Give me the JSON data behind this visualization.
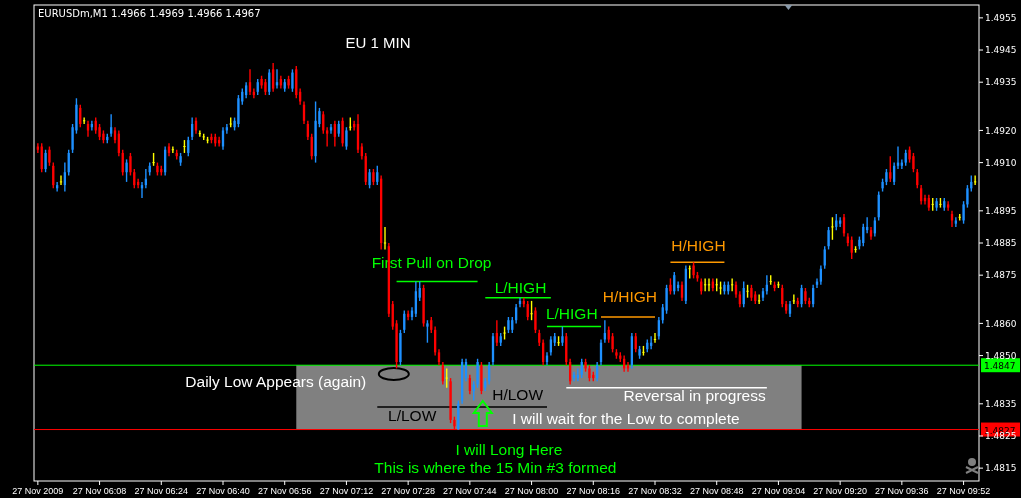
{
  "chart_data": {
    "type": "candlestick",
    "title": "EU 1 MIN",
    "subtitle": "EURUSDm,M1 1.4966 1.4969 1.4966 1.4967",
    "x": [
      "2009-11-27T05:52",
      "2009-11-27T05:53",
      "2009-11-27T05:54",
      "2009-11-27T05:55",
      "2009-11-27T05:56",
      "2009-11-27T05:57",
      "2009-11-27T05:58",
      "2009-11-27T05:59",
      "2009-11-27T06:00",
      "2009-11-27T06:01",
      "2009-11-27T06:02",
      "2009-11-27T06:03",
      "2009-11-27T06:04",
      "2009-11-27T06:05",
      "2009-11-27T06:06",
      "2009-11-27T06:07",
      "2009-11-27T06:08",
      "2009-11-27T06:09",
      "2009-11-27T06:10",
      "2009-11-27T06:11",
      "2009-11-27T06:12",
      "2009-11-27T06:13",
      "2009-11-27T06:14",
      "2009-11-27T06:15",
      "2009-11-27T06:16",
      "2009-11-27T06:17",
      "2009-11-27T06:18",
      "2009-11-27T06:19",
      "2009-11-27T06:20",
      "2009-11-27T06:21",
      "2009-11-27T06:22",
      "2009-11-27T06:23",
      "2009-11-27T06:24",
      "2009-11-27T06:25",
      "2009-11-27T06:26",
      "2009-11-27T06:27",
      "2009-11-27T06:28",
      "2009-11-27T06:29",
      "2009-11-27T06:30",
      "2009-11-27T06:31",
      "2009-11-27T06:32",
      "2009-11-27T06:33",
      "2009-11-27T06:34",
      "2009-11-27T06:35",
      "2009-11-27T06:36",
      "2009-11-27T06:37",
      "2009-11-27T06:38",
      "2009-11-27T06:39",
      "2009-11-27T06:40",
      "2009-11-27T06:41",
      "2009-11-27T06:42",
      "2009-11-27T06:43",
      "2009-11-27T06:44",
      "2009-11-27T06:45",
      "2009-11-27T06:46",
      "2009-11-27T06:47",
      "2009-11-27T06:48",
      "2009-11-27T06:49",
      "2009-11-27T06:50",
      "2009-11-27T06:51",
      "2009-11-27T06:52",
      "2009-11-27T06:53",
      "2009-11-27T06:54",
      "2009-11-27T06:55",
      "2009-11-27T06:56",
      "2009-11-27T06:57",
      "2009-11-27T06:58",
      "2009-11-27T06:59",
      "2009-11-27T07:00",
      "2009-11-27T07:01",
      "2009-11-27T07:02",
      "2009-11-27T07:03",
      "2009-11-27T07:04",
      "2009-11-27T07:05",
      "2009-11-27T07:06",
      "2009-11-27T07:07",
      "2009-11-27T07:08",
      "2009-11-27T07:09",
      "2009-11-27T07:10",
      "2009-11-27T07:11",
      "2009-11-27T07:12",
      "2009-11-27T07:13",
      "2009-11-27T07:14",
      "2009-11-27T07:15",
      "2009-11-27T07:16",
      "2009-11-27T07:17",
      "2009-11-27T07:18",
      "2009-11-27T07:19",
      "2009-11-27T07:20",
      "2009-11-27T07:21",
      "2009-11-27T07:22",
      "2009-11-27T07:23",
      "2009-11-27T07:24",
      "2009-11-27T07:25",
      "2009-11-27T07:26",
      "2009-11-27T07:27",
      "2009-11-27T07:28",
      "2009-11-27T07:29",
      "2009-11-27T07:30",
      "2009-11-27T07:31",
      "2009-11-27T07:32",
      "2009-11-27T07:33",
      "2009-11-27T07:34",
      "2009-11-27T07:35",
      "2009-11-27T07:36",
      "2009-11-27T07:37",
      "2009-11-27T07:38",
      "2009-11-27T07:39",
      "2009-11-27T07:40",
      "2009-11-27T07:41",
      "2009-11-27T07:42",
      "2009-11-27T07:43",
      "2009-11-27T07:44",
      "2009-11-27T07:45",
      "2009-11-27T07:46",
      "2009-11-27T07:47",
      "2009-11-27T07:48",
      "2009-11-27T07:49",
      "2009-11-27T07:50",
      "2009-11-27T07:51",
      "2009-11-27T07:52",
      "2009-11-27T07:53",
      "2009-11-27T07:54",
      "2009-11-27T07:55",
      "2009-11-27T07:56",
      "2009-11-27T07:57",
      "2009-11-27T07:58",
      "2009-11-27T07:59",
      "2009-11-27T08:00",
      "2009-11-27T08:01",
      "2009-11-27T08:02",
      "2009-11-27T08:03",
      "2009-11-27T08:04",
      "2009-11-27T08:05",
      "2009-11-27T08:06",
      "2009-11-27T08:07",
      "2009-11-27T08:08",
      "2009-11-27T08:09",
      "2009-11-27T08:10",
      "2009-11-27T08:11",
      "2009-11-27T08:12",
      "2009-11-27T08:13",
      "2009-11-27T08:14",
      "2009-11-27T08:15",
      "2009-11-27T08:16",
      "2009-11-27T08:17",
      "2009-11-27T08:18",
      "2009-11-27T08:19",
      "2009-11-27T08:20",
      "2009-11-27T08:21",
      "2009-11-27T08:22",
      "2009-11-27T08:23",
      "2009-11-27T08:24",
      "2009-11-27T08:25",
      "2009-11-27T08:26",
      "2009-11-27T08:27",
      "2009-11-27T08:28",
      "2009-11-27T08:29",
      "2009-11-27T08:30",
      "2009-11-27T08:31",
      "2009-11-27T08:32",
      "2009-11-27T08:33",
      "2009-11-27T08:34",
      "2009-11-27T08:35",
      "2009-11-27T08:36",
      "2009-11-27T08:37",
      "2009-11-27T08:38",
      "2009-11-27T08:39",
      "2009-11-27T08:40",
      "2009-11-27T08:41",
      "2009-11-27T08:42",
      "2009-11-27T08:43",
      "2009-11-27T08:44",
      "2009-11-27T08:45",
      "2009-11-27T08:46",
      "2009-11-27T08:47",
      "2009-11-27T08:48",
      "2009-11-27T08:49",
      "2009-11-27T08:50",
      "2009-11-27T08:51",
      "2009-11-27T08:52",
      "2009-11-27T08:53",
      "2009-11-27T08:54",
      "2009-11-27T08:55",
      "2009-11-27T08:56",
      "2009-11-27T08:57",
      "2009-11-27T08:58",
      "2009-11-27T08:59",
      "2009-11-27T09:00",
      "2009-11-27T09:01",
      "2009-11-27T09:02",
      "2009-11-27T09:03",
      "2009-11-27T09:04",
      "2009-11-27T09:05",
      "2009-11-27T09:06",
      "2009-11-27T09:07",
      "2009-11-27T09:08",
      "2009-11-27T09:09",
      "2009-11-27T09:10",
      "2009-11-27T09:11",
      "2009-11-27T09:12",
      "2009-11-27T09:13",
      "2009-11-27T09:14",
      "2009-11-27T09:15",
      "2009-11-27T09:16",
      "2009-11-27T09:17",
      "2009-11-27T09:18",
      "2009-11-27T09:19",
      "2009-11-27T09:20",
      "2009-11-27T09:21",
      "2009-11-27T09:22",
      "2009-11-27T09:23",
      "2009-11-27T09:24",
      "2009-11-27T09:25",
      "2009-11-27T09:26",
      "2009-11-27T09:27",
      "2009-11-27T09:28",
      "2009-11-27T09:29",
      "2009-11-27T09:30",
      "2009-11-27T09:31",
      "2009-11-27T09:32",
      "2009-11-27T09:33",
      "2009-11-27T09:34",
      "2009-11-27T09:35",
      "2009-11-27T09:36",
      "2009-11-27T09:37",
      "2009-11-27T09:38",
      "2009-11-27T09:39",
      "2009-11-27T09:40",
      "2009-11-27T09:41",
      "2009-11-27T09:42",
      "2009-11-27T09:43",
      "2009-11-27T09:44",
      "2009-11-27T09:45",
      "2009-11-27T09:46",
      "2009-11-27T09:47",
      "2009-11-27T09:48",
      "2009-11-27T09:49",
      "2009-11-27T09:50",
      "2009-11-27T09:51",
      "2009-11-27T09:52",
      "2009-11-27T09:53",
      "2009-11-27T09:54",
      "2009-11-27T09:55"
    ],
    "ohlc": [
      [
        1.4915,
        1.4916,
        1.4913,
        1.4914
      ],
      [
        1.4915,
        1.4916,
        1.4907,
        1.4908
      ],
      [
        1.4908,
        1.4914,
        1.4907,
        1.4913
      ],
      [
        1.4914,
        1.4915,
        1.4909,
        1.491
      ],
      [
        1.4909,
        1.491,
        1.4902,
        1.4903
      ],
      [
        1.4902,
        1.4904,
        1.4901,
        1.4903
      ],
      [
        1.4904,
        1.4906,
        1.4903,
        1.4904
      ],
      [
        1.4903,
        1.491,
        1.4901,
        1.4907
      ],
      [
        1.4907,
        1.4914,
        1.4906,
        1.4913
      ],
      [
        1.4914,
        1.4922,
        1.4913,
        1.4921
      ],
      [
        1.492,
        1.493,
        1.4919,
        1.4928
      ],
      [
        1.4927,
        1.4928,
        1.4921,
        1.4922
      ],
      [
        1.4923,
        1.4924,
        1.4922,
        1.4923
      ],
      [
        1.4922,
        1.4923,
        1.4918,
        1.492
      ],
      [
        1.4921,
        1.4923,
        1.492,
        1.4922
      ],
      [
        1.4923,
        1.4924,
        1.4919,
        1.492
      ],
      [
        1.4921,
        1.4922,
        1.4917,
        1.4918
      ],
      [
        1.4919,
        1.492,
        1.4916,
        1.4917
      ],
      [
        1.4917,
        1.4919,
        1.4916,
        1.4918
      ],
      [
        1.4919,
        1.4925,
        1.4918,
        1.4921
      ],
      [
        1.492,
        1.4921,
        1.4916,
        1.4917
      ],
      [
        1.4919,
        1.492,
        1.4912,
        1.4913
      ],
      [
        1.4913,
        1.4914,
        1.4906,
        1.4907
      ],
      [
        1.4907,
        1.4911,
        1.4904,
        1.491
      ],
      [
        1.4912,
        1.4913,
        1.4906,
        1.4907
      ],
      [
        1.4907,
        1.4908,
        1.4902,
        1.4903
      ],
      [
        1.4904,
        1.4905,
        1.4902,
        1.4903
      ],
      [
        1.4902,
        1.4904,
        1.4899,
        1.4903
      ],
      [
        1.4903,
        1.4908,
        1.4902,
        1.4905
      ],
      [
        1.4907,
        1.491,
        1.4906,
        1.4909
      ],
      [
        1.491,
        1.4913,
        1.4909,
        1.491
      ],
      [
        1.4909,
        1.491,
        1.4906,
        1.4907
      ],
      [
        1.4908,
        1.4909,
        1.4906,
        1.4907
      ],
      [
        1.4907,
        1.4915,
        1.4906,
        1.4914
      ],
      [
        1.4915,
        1.4916,
        1.4912,
        1.4913
      ],
      [
        1.4914,
        1.4915,
        1.4913,
        1.4914
      ],
      [
        1.4913,
        1.4914,
        1.4911,
        1.4912
      ],
      [
        1.491,
        1.4913,
        1.4909,
        1.4912
      ],
      [
        1.4915,
        1.4917,
        1.4913,
        1.4915
      ],
      [
        1.4913,
        1.4918,
        1.4912,
        1.4917
      ],
      [
        1.4918,
        1.4924,
        1.4917,
        1.4922
      ],
      [
        1.4923,
        1.4924,
        1.4919,
        1.492
      ],
      [
        1.4919,
        1.492,
        1.4918,
        1.4919
      ],
      [
        1.4918,
        1.4919,
        1.4917,
        1.4918
      ],
      [
        1.4917,
        1.4918,
        1.4916,
        1.4917
      ],
      [
        1.4918,
        1.4919,
        1.4916,
        1.4917
      ],
      [
        1.4918,
        1.4919,
        1.4915,
        1.4916
      ],
      [
        1.4917,
        1.4918,
        1.4915,
        1.4916
      ],
      [
        1.4915,
        1.4921,
        1.4914,
        1.492
      ],
      [
        1.492,
        1.4922,
        1.4919,
        1.4921
      ],
      [
        1.4922,
        1.4924,
        1.4921,
        1.4922
      ],
      [
        1.4921,
        1.4924,
        1.492,
        1.4923
      ],
      [
        1.4922,
        1.4931,
        1.4921,
        1.493
      ],
      [
        1.4929,
        1.4933,
        1.4928,
        1.4932
      ],
      [
        1.4931,
        1.4935,
        1.493,
        1.4934
      ],
      [
        1.4935,
        1.4939,
        1.4931,
        1.4932
      ],
      [
        1.4932,
        1.4933,
        1.493,
        1.4931
      ],
      [
        1.4932,
        1.4936,
        1.4931,
        1.4935
      ],
      [
        1.4936,
        1.4937,
        1.4933,
        1.4934
      ],
      [
        1.4935,
        1.4936,
        1.4931,
        1.4932
      ],
      [
        1.4932,
        1.4939,
        1.4931,
        1.4938
      ],
      [
        1.4939,
        1.4941,
        1.4932,
        1.4933
      ],
      [
        1.4934,
        1.4939,
        1.4933,
        1.4935
      ],
      [
        1.4936,
        1.4937,
        1.4933,
        1.4934
      ],
      [
        1.4933,
        1.4936,
        1.4932,
        1.4935
      ],
      [
        1.4936,
        1.4937,
        1.4933,
        1.4934
      ],
      [
        1.4933,
        1.4939,
        1.4932,
        1.4938
      ],
      [
        1.4939,
        1.494,
        1.493,
        1.4931
      ],
      [
        1.4932,
        1.4933,
        1.4928,
        1.4929
      ],
      [
        1.4928,
        1.4929,
        1.4922,
        1.4923
      ],
      [
        1.4922,
        1.4923,
        1.4917,
        1.4918
      ],
      [
        1.4918,
        1.4919,
        1.4911,
        1.4912
      ],
      [
        1.4912,
        1.4929,
        1.491,
        1.4923
      ],
      [
        1.4922,
        1.4927,
        1.4921,
        1.4926
      ],
      [
        1.4925,
        1.4926,
        1.4919,
        1.492
      ],
      [
        1.492,
        1.4921,
        1.4915,
        1.4919
      ],
      [
        1.492,
        1.4922,
        1.4919,
        1.4921
      ],
      [
        1.4922,
        1.4923,
        1.4915,
        1.4918
      ],
      [
        1.4919,
        1.4923,
        1.4918,
        1.4922
      ],
      [
        1.4923,
        1.4924,
        1.4915,
        1.4916
      ],
      [
        1.4915,
        1.4921,
        1.4914,
        1.492
      ],
      [
        1.4921,
        1.4924,
        1.492,
        1.4921
      ],
      [
        1.4922,
        1.4923,
        1.492,
        1.4921
      ],
      [
        1.4922,
        1.4925,
        1.4913,
        1.4914
      ],
      [
        1.4915,
        1.4916,
        1.4911,
        1.4912
      ],
      [
        1.4912,
        1.4913,
        1.4903,
        1.4904
      ],
      [
        1.4903,
        1.4908,
        1.4902,
        1.4907
      ],
      [
        1.4907,
        1.4908,
        1.4903,
        1.4904
      ],
      [
        1.4904,
        1.4909,
        1.4903,
        1.4907
      ],
      [
        1.4905,
        1.4906,
        1.4883,
        1.4885
      ],
      [
        1.4885,
        1.489,
        1.4883,
        1.4885
      ],
      [
        1.4884,
        1.4885,
        1.4862,
        1.4863
      ],
      [
        1.4866,
        1.4867,
        1.4858,
        1.4859
      ],
      [
        1.486,
        1.4861,
        1.4846,
        1.4848
      ],
      [
        1.4848,
        1.4858,
        1.4847,
        1.4857
      ],
      [
        1.4858,
        1.4864,
        1.4857,
        1.4863
      ],
      [
        1.4863,
        1.4864,
        1.4861,
        1.4862
      ],
      [
        1.4862,
        1.4865,
        1.4861,
        1.4864
      ],
      [
        1.4863,
        1.4873,
        1.4862,
        1.487
      ],
      [
        1.4868,
        1.4873,
        1.4867,
        1.4871
      ],
      [
        1.4871,
        1.4872,
        1.4859,
        1.486
      ],
      [
        1.4859,
        1.4861,
        1.4854,
        1.486
      ],
      [
        1.4861,
        1.4862,
        1.4857,
        1.4858
      ],
      [
        1.4858,
        1.4859,
        1.485,
        1.4851
      ],
      [
        1.4851,
        1.4852,
        1.4847,
        1.4848
      ],
      [
        1.4847,
        1.4848,
        1.4841,
        1.4842
      ],
      [
        1.4843,
        1.4846,
        1.484,
        1.4843
      ],
      [
        1.4842,
        1.4843,
        1.4829,
        1.483
      ],
      [
        1.483,
        1.4831,
        1.4827,
        1.4828
      ],
      [
        1.4827,
        1.4836,
        1.4827,
        1.4835
      ],
      [
        1.4836,
        1.4849,
        1.4835,
        1.4848
      ],
      [
        1.4843,
        1.4849,
        1.4842,
        1.4848
      ],
      [
        1.4843,
        1.4844,
        1.4838,
        1.4839
      ],
      [
        1.4839,
        1.4842,
        1.4836,
        1.4841
      ],
      [
        1.4841,
        1.4849,
        1.484,
        1.4848
      ],
      [
        1.4847,
        1.4848,
        1.4838,
        1.4839
      ],
      [
        1.484,
        1.4843,
        1.4839,
        1.4842
      ],
      [
        1.4842,
        1.4848,
        1.4841,
        1.4847
      ],
      [
        1.4848,
        1.4857,
        1.4847,
        1.4856
      ],
      [
        1.4857,
        1.4861,
        1.4853,
        1.4854
      ],
      [
        1.4854,
        1.4857,
        1.4853,
        1.4856
      ],
      [
        1.4857,
        1.4859,
        1.4855,
        1.4857
      ],
      [
        1.4858,
        1.4862,
        1.4857,
        1.4861
      ],
      [
        1.4858,
        1.4862,
        1.4857,
        1.4861
      ],
      [
        1.4861,
        1.4866,
        1.486,
        1.4865
      ],
      [
        1.4866,
        1.4868,
        1.4865,
        1.4867
      ],
      [
        1.4867,
        1.4868,
        1.4865,
        1.4866
      ],
      [
        1.4866,
        1.4867,
        1.4861,
        1.4862
      ],
      [
        1.4863,
        1.4867,
        1.4861,
        1.4863
      ],
      [
        1.4864,
        1.4865,
        1.4857,
        1.4858
      ],
      [
        1.4857,
        1.4858,
        1.4853,
        1.4854
      ],
      [
        1.4854,
        1.4855,
        1.4847,
        1.4848
      ],
      [
        1.4848,
        1.4851,
        1.4847,
        1.485
      ],
      [
        1.4851,
        1.4856,
        1.485,
        1.4855
      ],
      [
        1.4854,
        1.4857,
        1.4853,
        1.4856
      ],
      [
        1.4854,
        1.4856,
        1.4853,
        1.4854
      ],
      [
        1.4854,
        1.4859,
        1.4853,
        1.4856
      ],
      [
        1.4856,
        1.4857,
        1.4847,
        1.4848
      ],
      [
        1.4848,
        1.4849,
        1.4841,
        1.4842
      ],
      [
        1.4843,
        1.4845,
        1.4842,
        1.4844
      ],
      [
        1.4843,
        1.4846,
        1.4842,
        1.4844
      ],
      [
        1.4844,
        1.4849,
        1.4843,
        1.4848
      ],
      [
        1.4848,
        1.4849,
        1.4845,
        1.4846
      ],
      [
        1.4846,
        1.4847,
        1.4842,
        1.4843
      ],
      [
        1.4844,
        1.4845,
        1.4842,
        1.4843
      ],
      [
        1.4843,
        1.4848,
        1.4842,
        1.4847
      ],
      [
        1.4848,
        1.4855,
        1.4847,
        1.4854
      ],
      [
        1.4855,
        1.4861,
        1.4854,
        1.4857
      ],
      [
        1.4858,
        1.4859,
        1.4854,
        1.4855
      ],
      [
        1.4856,
        1.4857,
        1.4851,
        1.4852
      ],
      [
        1.4851,
        1.4852,
        1.4849,
        1.485
      ],
      [
        1.485,
        1.4851,
        1.4848,
        1.4849
      ],
      [
        1.4849,
        1.485,
        1.4845,
        1.4846
      ],
      [
        1.4847,
        1.4848,
        1.4845,
        1.4846
      ],
      [
        1.4847,
        1.4857,
        1.4846,
        1.4856
      ],
      [
        1.4856,
        1.4857,
        1.4851,
        1.4852
      ],
      [
        1.485,
        1.4853,
        1.4849,
        1.4852
      ],
      [
        1.4851,
        1.4853,
        1.485,
        1.4851
      ],
      [
        1.4852,
        1.4855,
        1.4851,
        1.4854
      ],
      [
        1.4853,
        1.4856,
        1.4852,
        1.4854
      ],
      [
        1.4855,
        1.4857,
        1.4854,
        1.4855
      ],
      [
        1.4856,
        1.4862,
        1.4855,
        1.4861
      ],
      [
        1.4861,
        1.4866,
        1.486,
        1.4865
      ],
      [
        1.4864,
        1.4872,
        1.4863,
        1.4871
      ],
      [
        1.4872,
        1.4874,
        1.4869,
        1.487
      ],
      [
        1.487,
        1.4876,
        1.4869,
        1.4875
      ],
      [
        1.4871,
        1.4873,
        1.487,
        1.4872
      ],
      [
        1.4872,
        1.4873,
        1.4867,
        1.4868
      ],
      [
        1.4867,
        1.4878,
        1.4866,
        1.4877
      ],
      [
        1.4877,
        1.4878,
        1.4874,
        1.4877
      ],
      [
        1.4878,
        1.4879,
        1.4874,
        1.4875
      ],
      [
        1.4875,
        1.4876,
        1.4873,
        1.4874
      ],
      [
        1.4873,
        1.4874,
        1.4869,
        1.487
      ],
      [
        1.4872,
        1.4874,
        1.487,
        1.4872
      ],
      [
        1.4872,
        1.4874,
        1.487,
        1.4872
      ],
      [
        1.4873,
        1.4874,
        1.487,
        1.4871
      ],
      [
        1.4872,
        1.4874,
        1.487,
        1.4872
      ],
      [
        1.4871,
        1.4873,
        1.4869,
        1.4871
      ],
      [
        1.487,
        1.4873,
        1.4869,
        1.4872
      ],
      [
        1.487,
        1.4873,
        1.4869,
        1.4872
      ],
      [
        1.4872,
        1.4874,
        1.487,
        1.4872
      ],
      [
        1.4872,
        1.4873,
        1.4868,
        1.4869
      ],
      [
        1.4869,
        1.487,
        1.4865,
        1.4866
      ],
      [
        1.4866,
        1.4873,
        1.4865,
        1.4871
      ],
      [
        1.487,
        1.4872,
        1.4868,
        1.487
      ],
      [
        1.4871,
        1.4872,
        1.4867,
        1.4868
      ],
      [
        1.4869,
        1.487,
        1.4866,
        1.4867
      ],
      [
        1.4867,
        1.4869,
        1.4866,
        1.4867
      ],
      [
        1.4868,
        1.4871,
        1.4867,
        1.487
      ],
      [
        1.487,
        1.4875,
        1.4869,
        1.4872
      ],
      [
        1.4873,
        1.4875,
        1.4872,
        1.4873
      ],
      [
        1.4872,
        1.4873,
        1.487,
        1.4871
      ],
      [
        1.4872,
        1.4873,
        1.4871,
        1.4872
      ],
      [
        1.4871,
        1.4872,
        1.4865,
        1.4866
      ],
      [
        1.4866,
        1.4867,
        1.4863,
        1.4864
      ],
      [
        1.4863,
        1.4867,
        1.4862,
        1.4866
      ],
      [
        1.4867,
        1.4869,
        1.4866,
        1.4867
      ],
      [
        1.4867,
        1.4868,
        1.4865,
        1.4866
      ],
      [
        1.4866,
        1.4872,
        1.4865,
        1.4871
      ],
      [
        1.487,
        1.4871,
        1.4866,
        1.4867
      ],
      [
        1.4867,
        1.4868,
        1.4865,
        1.4866
      ],
      [
        1.4866,
        1.4872,
        1.4865,
        1.4871
      ],
      [
        1.4872,
        1.4874,
        1.4871,
        1.4873
      ],
      [
        1.4873,
        1.4878,
        1.4872,
        1.4877
      ],
      [
        1.4878,
        1.4884,
        1.4877,
        1.4883
      ],
      [
        1.4884,
        1.489,
        1.4883,
        1.4889
      ],
      [
        1.489,
        1.4893,
        1.4886,
        1.489
      ],
      [
        1.489,
        1.4894,
        1.4889,
        1.4892
      ],
      [
        1.4891,
        1.4893,
        1.489,
        1.4892
      ],
      [
        1.4893,
        1.4894,
        1.4887,
        1.4888
      ],
      [
        1.4887,
        1.4888,
        1.4884,
        1.4885
      ],
      [
        1.4886,
        1.4887,
        1.488,
        1.4882
      ],
      [
        1.4883,
        1.4884,
        1.4882,
        1.4883
      ],
      [
        1.4884,
        1.4887,
        1.4883,
        1.4886
      ],
      [
        1.4885,
        1.4891,
        1.4884,
        1.489
      ],
      [
        1.4889,
        1.4893,
        1.4888,
        1.489
      ],
      [
        1.4889,
        1.489,
        1.4886,
        1.4887
      ],
      [
        1.4888,
        1.4893,
        1.4887,
        1.4892
      ],
      [
        1.4893,
        1.4901,
        1.4892,
        1.49
      ],
      [
        1.4902,
        1.4905,
        1.4901,
        1.4904
      ],
      [
        1.4904,
        1.4908,
        1.4903,
        1.4907
      ],
      [
        1.4907,
        1.4912,
        1.4904,
        1.4905
      ],
      [
        1.4904,
        1.491,
        1.4903,
        1.4909
      ],
      [
        1.4909,
        1.4915,
        1.4908,
        1.491
      ],
      [
        1.4909,
        1.4911,
        1.4908,
        1.491
      ],
      [
        1.491,
        1.4914,
        1.4909,
        1.4913
      ],
      [
        1.4914,
        1.4915,
        1.491,
        1.4911
      ],
      [
        1.4912,
        1.4913,
        1.4907,
        1.4908
      ],
      [
        1.4907,
        1.4908,
        1.4902,
        1.4903
      ],
      [
        1.4902,
        1.4903,
        1.4897,
        1.4898
      ],
      [
        1.4899,
        1.49,
        1.4897,
        1.4898
      ],
      [
        1.4899,
        1.49,
        1.4895,
        1.4896
      ],
      [
        1.4897,
        1.4899,
        1.4895,
        1.4897
      ],
      [
        1.4896,
        1.4899,
        1.4895,
        1.4898
      ],
      [
        1.4897,
        1.4899,
        1.4896,
        1.4897
      ],
      [
        1.4896,
        1.4899,
        1.4895,
        1.4898
      ],
      [
        1.4897,
        1.4898,
        1.4895,
        1.4896
      ],
      [
        1.4894,
        1.4895,
        1.489,
        1.4892
      ],
      [
        1.4891,
        1.4893,
        1.489,
        1.4892
      ],
      [
        1.4893,
        1.4894,
        1.4892,
        1.4893
      ],
      [
        1.4892,
        1.4898,
        1.4891,
        1.4897
      ],
      [
        1.4897,
        1.4903,
        1.4896,
        1.4902
      ],
      [
        1.4902,
        1.4906,
        1.4901,
        1.4904
      ],
      [
        1.4904,
        1.4906,
        1.4903,
        1.4904
      ]
    ],
    "colors": [
      "#ff0000",
      "#ff0000",
      "#1e90ff",
      "#ff0000",
      "#ff0000",
      "#1e90ff",
      "#ffff00",
      "#1e90ff",
      "#1e90ff",
      "#1e90ff",
      "#1e90ff",
      "#ff0000",
      "#ffff00",
      "#ff0000",
      "#1e90ff",
      "#ff0000",
      "#ff0000",
      "#ff0000",
      "#1e90ff",
      "#1e90ff",
      "#ff0000",
      "#ff0000",
      "#ff0000",
      "#1e90ff",
      "#ff0000",
      "#ff0000",
      "#ff0000",
      "#1e90ff",
      "#1e90ff",
      "#1e90ff",
      "#ffff00",
      "#ff0000",
      "#ff0000",
      "#1e90ff",
      "#ff0000",
      "#ffff00",
      "#ff0000",
      "#1e90ff",
      "#ffff00",
      "#1e90ff",
      "#1e90ff",
      "#ff0000",
      "#ffff00",
      "#ffff00",
      "#ffff00",
      "#ff0000",
      "#ff0000",
      "#ff0000",
      "#1e90ff",
      "#1e90ff",
      "#ffff00",
      "#1e90ff",
      "#1e90ff",
      "#1e90ff",
      "#1e90ff",
      "#ff0000",
      "#ff0000",
      "#1e90ff",
      "#ff0000",
      "#ff0000",
      "#1e90ff",
      "#ff0000",
      "#1e90ff",
      "#ff0000",
      "#1e90ff",
      "#ff0000",
      "#1e90ff",
      "#ff0000",
      "#ff0000",
      "#ff0000",
      "#ff0000",
      "#ff0000",
      "#1e90ff",
      "#1e90ff",
      "#ff0000",
      "#ff0000",
      "#1e90ff",
      "#ff0000",
      "#1e90ff",
      "#ff0000",
      "#1e90ff",
      "#ffff00",
      "#ff0000",
      "#ff0000",
      "#ff0000",
      "#ff0000",
      "#1e90ff",
      "#ff0000",
      "#1e90ff",
      "#ff0000",
      "#ffff00",
      "#ff0000",
      "#ff0000",
      "#ff0000",
      "#1e90ff",
      "#1e90ff",
      "#ff0000",
      "#1e90ff",
      "#1e90ff",
      "#1e90ff",
      "#ff0000",
      "#1e90ff",
      "#ff0000",
      "#ff0000",
      "#ff0000",
      "#ff0000",
      "#ffff00",
      "#ff0000",
      "#ff0000",
      "#1e90ff",
      "#1e90ff",
      "#1e90ff",
      "#ff0000",
      "#1e90ff",
      "#1e90ff",
      "#ff0000",
      "#1e90ff",
      "#1e90ff",
      "#1e90ff",
      "#ff0000",
      "#1e90ff",
      "#ffff00",
      "#1e90ff",
      "#1e90ff",
      "#1e90ff",
      "#1e90ff",
      "#ff0000",
      "#ff0000",
      "#ffff00",
      "#ff0000",
      "#ff0000",
      "#ff0000",
      "#1e90ff",
      "#1e90ff",
      "#1e90ff",
      "#ffff00",
      "#1e90ff",
      "#ff0000",
      "#ff0000",
      "#1e90ff",
      "#1e90ff",
      "#1e90ff",
      "#ff0000",
      "#ff0000",
      "#ff0000",
      "#1e90ff",
      "#1e90ff",
      "#1e90ff",
      "#ff0000",
      "#ff0000",
      "#ff0000",
      "#ff0000",
      "#ff0000",
      "#ff0000",
      "#1e90ff",
      "#ff0000",
      "#1e90ff",
      "#ffff00",
      "#1e90ff",
      "#1e90ff",
      "#ffff00",
      "#1e90ff",
      "#1e90ff",
      "#1e90ff",
      "#ff0000",
      "#1e90ff",
      "#1e90ff",
      "#ff0000",
      "#1e90ff",
      "#ffff00",
      "#ff0000",
      "#ff0000",
      "#ff0000",
      "#ffff00",
      "#ffff00",
      "#ff0000",
      "#ffff00",
      "#ffff00",
      "#1e90ff",
      "#1e90ff",
      "#ffff00",
      "#ff0000",
      "#ff0000",
      "#1e90ff",
      "#ffff00",
      "#ff0000",
      "#ff0000",
      "#ffff00",
      "#1e90ff",
      "#1e90ff",
      "#ffff00",
      "#ff0000",
      "#ffff00",
      "#ff0000",
      "#ff0000",
      "#1e90ff",
      "#ffff00",
      "#ff0000",
      "#1e90ff",
      "#ff0000",
      "#ff0000",
      "#1e90ff",
      "#1e90ff",
      "#1e90ff",
      "#1e90ff",
      "#1e90ff",
      "#ffff00",
      "#1e90ff",
      "#1e90ff",
      "#ff0000",
      "#ff0000",
      "#ff0000",
      "#ffff00",
      "#1e90ff",
      "#1e90ff",
      "#1e90ff",
      "#ff0000",
      "#1e90ff",
      "#1e90ff",
      "#1e90ff",
      "#1e90ff",
      "#ff0000",
      "#1e90ff",
      "#1e90ff",
      "#1e90ff",
      "#1e90ff",
      "#ff0000",
      "#ff0000",
      "#ff0000",
      "#ff0000",
      "#ff0000",
      "#ff0000",
      "#ffff00",
      "#1e90ff",
      "#ffff00",
      "#1e90ff",
      "#ff0000",
      "#ff0000",
      "#1e90ff",
      "#ffff00",
      "#1e90ff",
      "#1e90ff",
      "#1e90ff",
      "#ffff00"
    ],
    "series": [
      {
        "type": "line",
        "x": [
          "2009-11-27T07:25",
          "2009-11-27T07:46"
        ],
        "values": [
          1.4873,
          1.4873
        ],
        "color": "#00ff00"
      },
      {
        "type": "line",
        "x": [
          "2009-11-27T07:48",
          "2009-11-27T08:05"
        ],
        "values": [
          1.4868,
          1.4868
        ],
        "color": "#00ff00"
      },
      {
        "type": "line",
        "x": [
          "2009-11-27T08:04",
          "2009-11-27T08:18"
        ],
        "values": [
          1.4859,
          1.4859
        ],
        "color": "#00ff00"
      },
      {
        "type": "line",
        "x": [
          "2009-11-27T08:18",
          "2009-11-27T08:32"
        ],
        "values": [
          1.4862,
          1.4862
        ],
        "color": "#ff9900"
      },
      {
        "type": "line",
        "x": [
          "2009-11-27T08:36",
          "2009-11-27T08:50"
        ],
        "values": [
          1.4879,
          1.4879
        ],
        "color": "#ff9900"
      },
      {
        "type": "line",
        "x": [
          "2009-11-27T07:20",
          "2009-11-27T08:04"
        ],
        "values": [
          1.4834,
          1.4834
        ],
        "color": "#000000"
      },
      {
        "type": "line",
        "x": [
          "2009-11-27T08:09",
          "2009-11-27T09:01"
        ],
        "values": [
          1.484,
          1.484
        ],
        "color": "#ffffff"
      }
    ],
    "annotations": [
      "First Pull on Drop",
      "L/HIGH",
      "L/HIGH",
      "H/HIGH",
      "H/HIGH",
      "H/LOW",
      "L/LOW",
      "Daily Low Appears (again)",
      "Reversal in progress",
      "I will wait for the Low to complete",
      "I will Long Here",
      "This is where the 15 Min #3 formed"
    ],
    "ref_lines": [
      {
        "axis": "y",
        "value": 1.4847,
        "label": "1.4847",
        "color": "#00ff00"
      },
      {
        "axis": "y",
        "value": 1.4827,
        "label": "1.4827",
        "color": "#ff0000"
      }
    ],
    "bands": [
      {
        "axis": "x",
        "from": "2009-11-27T06:59",
        "to": "2009-11-27T09:10",
        "color": "#808080"
      }
    ],
    "xlim": [
      "2009-11-27T05:51",
      "2009-11-27T09:56"
    ],
    "xticks": [
      {
        "value": "2009-11-27T05:52",
        "label": "27 Nov 2009"
      },
      {
        "value": "2009-11-27T06:08",
        "label": "27 Nov 06:08"
      },
      {
        "value": "2009-11-27T06:24",
        "label": "27 Nov 06:24"
      },
      {
        "value": "2009-11-27T06:40",
        "label": "27 Nov 06:40"
      },
      {
        "value": "2009-11-27T06:56",
        "label": "27 Nov 06:56"
      },
      {
        "value": "2009-11-27T07:12",
        "label": "27 Nov 07:12"
      },
      {
        "value": "2009-11-27T07:28",
        "label": "27 Nov 07:28"
      },
      {
        "value": "2009-11-27T07:44",
        "label": "27 Nov 07:44"
      },
      {
        "value": "2009-11-27T08:00",
        "label": "27 Nov 08:00"
      },
      {
        "value": "2009-11-27T08:16",
        "label": "27 Nov 08:16"
      },
      {
        "value": "2009-11-27T08:32",
        "label": "27 Nov 08:32"
      },
      {
        "value": "2009-11-27T08:48",
        "label": "27 Nov 08:48"
      },
      {
        "value": "2009-11-27T09:04",
        "label": "27 Nov 09:04"
      },
      {
        "value": "2009-11-27T09:20",
        "label": "27 Nov 09:20"
      },
      {
        "value": "2009-11-27T09:36",
        "label": "27 Nov 09:36"
      },
      {
        "value": "2009-11-27T09:52",
        "label": "27 Nov 09:52"
      }
    ],
    "ylim": [
      1.4811,
      1.4959
    ],
    "yticks": [
      1.4955,
      1.4945,
      1.4935,
      {
        "value": 1.492,
        "label": "1.4920"
      },
      {
        "value": 1.491,
        "label": "1.4910"
      },
      1.4895,
      1.4885,
      1.4875,
      {
        "value": 1.486,
        "label": "1.4860"
      },
      {
        "value": 1.485,
        "label": "1.4850"
      },
      1.4835,
      1.4825,
      1.4815
    ]
  }
}
